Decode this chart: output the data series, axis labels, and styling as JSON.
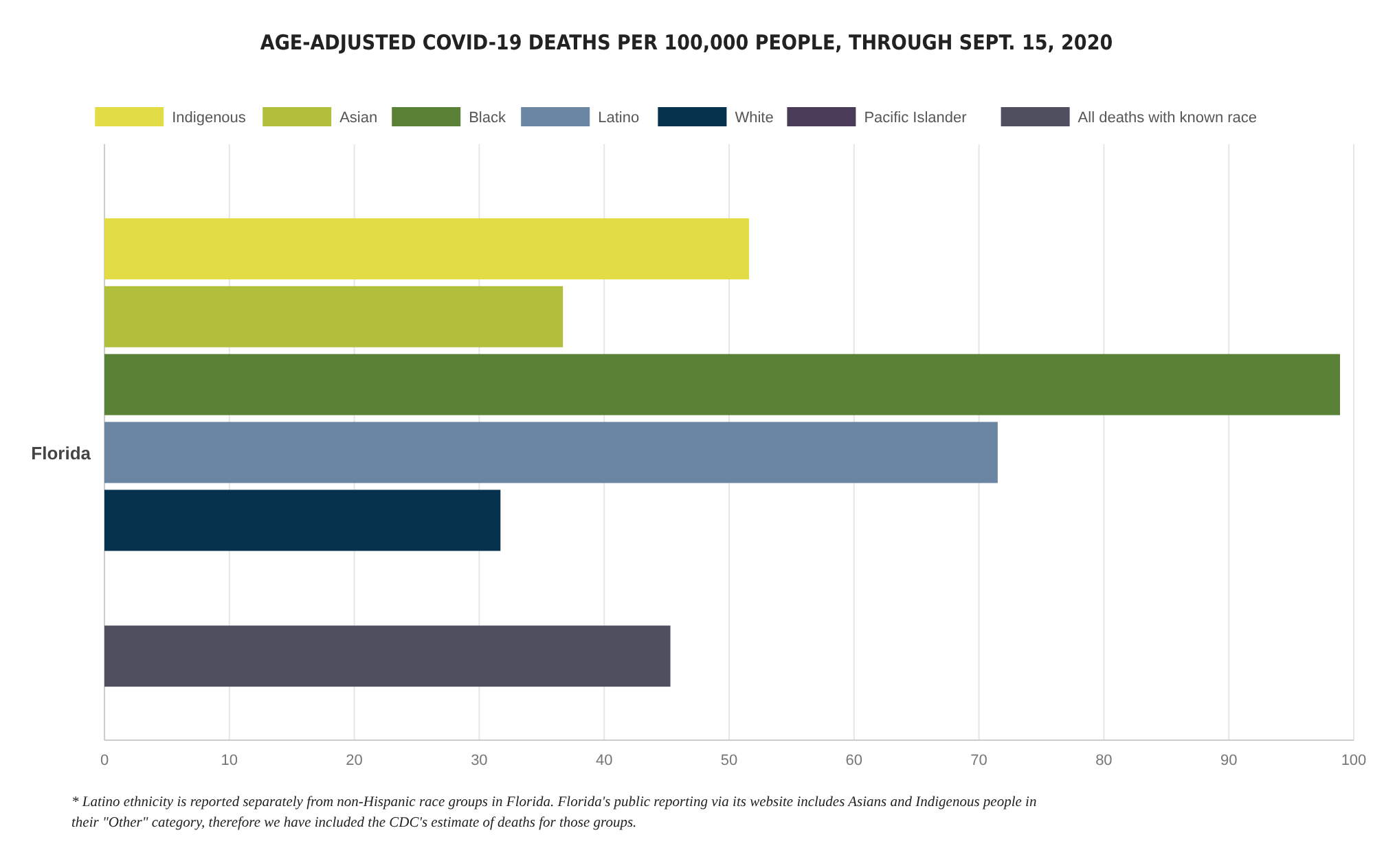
{
  "chart_data": {
    "type": "bar",
    "orientation": "horizontal",
    "title": "AGE-ADJUSTED COVID-19 DEATHS PER 100,000 PEOPLE, THROUGH SEPT. 15, 2020",
    "categories": [
      "Florida"
    ],
    "series": [
      {
        "name": "Indigenous",
        "color": "#e3dd45",
        "values": [
          51.6
        ]
      },
      {
        "name": "Asian",
        "color": "#b1bf3d",
        "values": [
          36.7
        ]
      },
      {
        "name": "Black",
        "color": "#5a8236",
        "values": [
          98.9
        ]
      },
      {
        "name": "Latino",
        "color": "#6a86a2",
        "values": [
          71.5
        ]
      },
      {
        "name": "White",
        "color": "#06324e",
        "values": [
          31.7
        ]
      },
      {
        "name": "Pacific Islander",
        "color": "#4a3c58",
        "values": [
          null
        ]
      },
      {
        "name": "All deaths with known race",
        "color": "#4f4f5f",
        "values": [
          45.3
        ]
      }
    ],
    "xlim": [
      0,
      100
    ],
    "xticks": [
      0,
      10,
      20,
      30,
      40,
      50,
      60,
      70,
      80,
      90,
      100
    ],
    "grid": "x",
    "legend": "top",
    "annotations": [
      "* Latino ethnicity is reported separately from non-Hispanic race groups in Florida. Florida's public reporting via its website includes Asians and Indigenous people in their \"Other\" category, therefore we have included the CDC's estimate of deaths for those groups."
    ]
  }
}
